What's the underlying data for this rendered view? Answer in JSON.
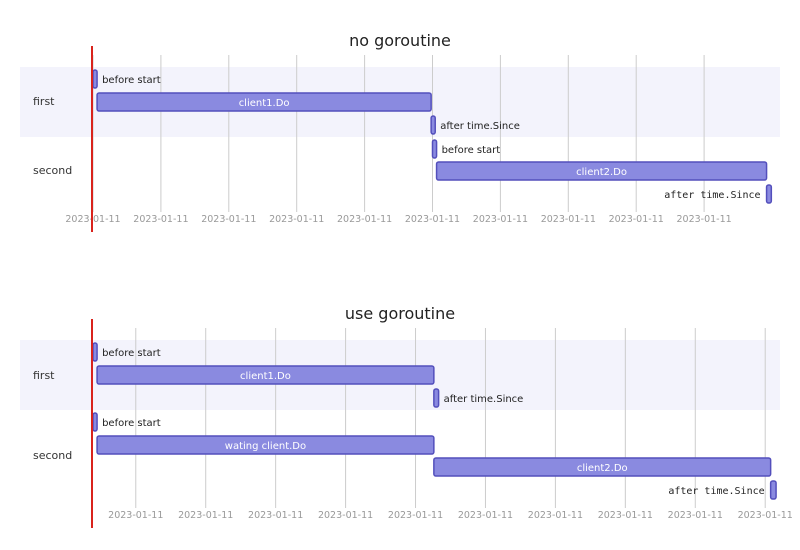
{
  "colors": {
    "bar_fill": "#8a8ae0",
    "bar_stroke": "#534fbc",
    "band": "#f3f3fc",
    "grid": "#cccccc",
    "today_line": "#d9231c"
  },
  "chart_data": [
    {
      "type": "gantt",
      "title": "no goroutine",
      "x_range": [
        0,
        100
      ],
      "tick_labels": [
        "2023-01-11",
        "2023-01-11",
        "2023-01-11",
        "2023-01-11",
        "2023-01-11",
        "2023-01-11",
        "2023-01-11",
        "2023-01-11",
        "2023-01-11",
        "2023-01-11"
      ],
      "tick_values": [
        0,
        10,
        20,
        30,
        40,
        50,
        60,
        70,
        80,
        90
      ],
      "sections": [
        {
          "name": "first",
          "tasks": [
            {
              "label": "before start",
              "start": 0,
              "end": 0.6,
              "label_style": "outside"
            },
            {
              "label": "client1.Do",
              "start": 0.6,
              "end": 49.8,
              "label_style": "inside"
            },
            {
              "label": "after time.Since",
              "start": 49.8,
              "end": 50.4,
              "label_style": "outside"
            }
          ]
        },
        {
          "name": "second",
          "tasks": [
            {
              "label": "before start",
              "start": 50.0,
              "end": 50.6,
              "label_style": "outside"
            },
            {
              "label": "client2.Do",
              "start": 50.6,
              "end": 99.2,
              "label_style": "inside"
            },
            {
              "label": "after time.Since",
              "start": 99.2,
              "end": 99.9,
              "label_style": "outside-left-mono"
            }
          ]
        }
      ]
    },
    {
      "type": "gantt",
      "title": "use goroutine",
      "x_range": [
        0,
        100
      ],
      "tick_labels": [
        "2023-01-11",
        "2023-01-11",
        "2023-01-11",
        "2023-01-11",
        "2023-01-11",
        "2023-01-11",
        "2023-01-11",
        "2023-01-11",
        "2023-01-11",
        "2023-01-11"
      ],
      "tick_values": [
        6.3,
        16.6,
        26.9,
        37.2,
        47.5,
        57.8,
        68.1,
        78.4,
        88.7,
        99.0
      ],
      "sections": [
        {
          "name": "first",
          "tasks": [
            {
              "label": "before start",
              "start": 0,
              "end": 0.6,
              "label_style": "outside"
            },
            {
              "label": "client1.Do",
              "start": 0.6,
              "end": 50.2,
              "label_style": "inside"
            },
            {
              "label": "after time.Since",
              "start": 50.2,
              "end": 50.9,
              "label_style": "outside"
            }
          ]
        },
        {
          "name": "second",
          "tasks": [
            {
              "label": "before start",
              "start": 0,
              "end": 0.6,
              "label_style": "outside"
            },
            {
              "label": "wating client.Do",
              "start": 0.6,
              "end": 50.2,
              "label_style": "inside"
            },
            {
              "label": "client2.Do",
              "start": 50.2,
              "end": 99.8,
              "label_style": "inside"
            },
            {
              "label": "after time.Since",
              "start": 99.8,
              "end": 100.6,
              "label_style": "outside-left-mono"
            }
          ]
        }
      ]
    }
  ]
}
